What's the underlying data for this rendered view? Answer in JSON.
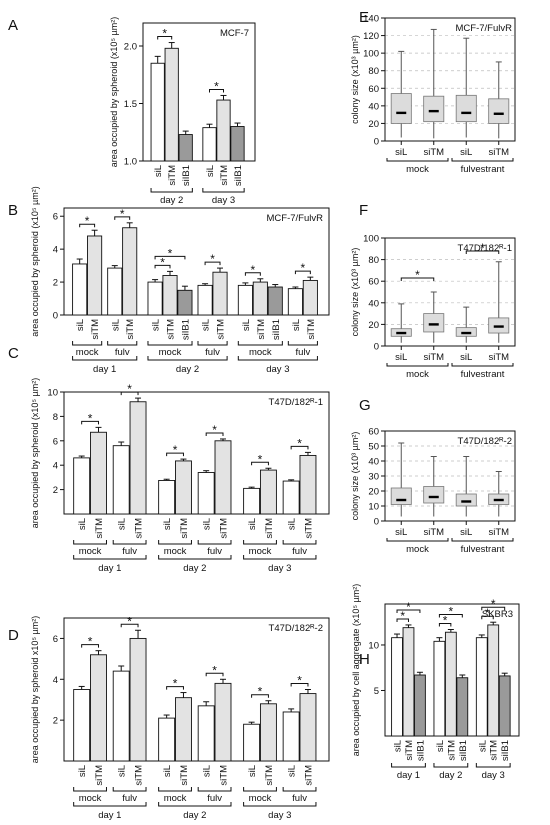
{
  "colors": {
    "white_bar": "#ffffff",
    "light_bar": "#e3e3e3",
    "dark_bar": "#9a9a9a",
    "box_fill": "#dcdcdc",
    "axis": "#111111",
    "grid": "#bdbdbd"
  },
  "chart_data": [
    {
      "panel": "A",
      "type": "bar",
      "title": "MCF-7",
      "ylabel": "area occupied by spheroid (x10⁵ µm²)",
      "ylim": [
        1.0,
        2.2
      ],
      "ticks": [
        1.0,
        1.5,
        2.0
      ],
      "tick_labels": [
        "1.0",
        "1.5",
        "2.0"
      ],
      "groups": [
        {
          "label": "day 2",
          "bars": [
            {
              "cat": "siL",
              "value": 1.85,
              "err": 0.06,
              "color": "white"
            },
            {
              "cat": "siTM",
              "value": 1.98,
              "err": 0.05,
              "color": "light"
            },
            {
              "cat": "siIB1",
              "value": 1.23,
              "err": 0.03,
              "color": "dark"
            }
          ]
        },
        {
          "label": "day 3",
          "bars": [
            {
              "cat": "siL",
              "value": 1.29,
              "err": 0.03,
              "color": "white"
            },
            {
              "cat": "siTM",
              "value": 1.53,
              "err": 0.04,
              "color": "light"
            },
            {
              "cat": "siIB1",
              "value": 1.3,
              "err": 0.03,
              "color": "dark"
            }
          ]
        }
      ],
      "stars": [
        {
          "g": 0,
          "a": 0,
          "b": 1
        },
        {
          "g": 1,
          "a": 0,
          "b": 1
        }
      ]
    },
    {
      "panel": "B",
      "type": "bar",
      "title": "MCF-7/FulvR",
      "ylabel": "area occupied by spheroid (x10⁵ µm²)",
      "ylim": [
        0,
        6.5
      ],
      "ticks": [
        0,
        2,
        4,
        6
      ],
      "tick_labels": [
        "0",
        "2",
        "4",
        "6"
      ],
      "groups": [
        {
          "label": "day 1",
          "subgroups": [
            {
              "label": "mock",
              "bars": [
                {
                  "cat": "siL",
                  "value": 3.1,
                  "err": 0.3,
                  "color": "white"
                },
                {
                  "cat": "siTM",
                  "value": 4.8,
                  "err": 0.35,
                  "color": "light"
                }
              ]
            },
            {
              "label": "fulv",
              "bars": [
                {
                  "cat": "siL",
                  "value": 2.85,
                  "err": 0.15,
                  "color": "white"
                },
                {
                  "cat": "siTM",
                  "value": 5.3,
                  "err": 0.3,
                  "color": "light"
                }
              ]
            }
          ]
        },
        {
          "label": "day 2",
          "subgroups": [
            {
              "label": "mock",
              "bars": [
                {
                  "cat": "siL",
                  "value": 2.0,
                  "err": 0.15,
                  "color": "white"
                },
                {
                  "cat": "siTM",
                  "value": 2.4,
                  "err": 0.25,
                  "color": "light"
                },
                {
                  "cat": "siIB1",
                  "value": 1.5,
                  "err": 0.25,
                  "color": "dark"
                }
              ]
            },
            {
              "label": "fulv",
              "bars": [
                {
                  "cat": "siL",
                  "value": 1.8,
                  "err": 0.1,
                  "color": "white"
                },
                {
                  "cat": "siTM",
                  "value": 2.6,
                  "err": 0.25,
                  "color": "light"
                }
              ]
            }
          ]
        },
        {
          "label": "day 3",
          "subgroups": [
            {
              "label": "mock",
              "bars": [
                {
                  "cat": "siL",
                  "value": 1.8,
                  "err": 0.15,
                  "color": "white"
                },
                {
                  "cat": "siTM",
                  "value": 2.0,
                  "err": 0.2,
                  "color": "light"
                },
                {
                  "cat": "siIB1",
                  "value": 1.7,
                  "err": 0.15,
                  "color": "dark"
                }
              ]
            },
            {
              "label": "fulv",
              "bars": [
                {
                  "cat": "siL",
                  "value": 1.6,
                  "err": 0.1,
                  "color": "white"
                },
                {
                  "cat": "siTM",
                  "value": 2.1,
                  "err": 0.2,
                  "color": "light"
                }
              ]
            }
          ]
        }
      ],
      "stars": [
        {
          "sg": [
            0,
            0
          ]
        },
        {
          "sg": [
            0,
            1
          ]
        },
        {
          "sg": [
            1,
            0
          ]
        },
        {
          "sg": [
            1,
            0
          ],
          "wide": true
        },
        {
          "sg": [
            1,
            1
          ]
        },
        {
          "sg": [
            2,
            0
          ]
        },
        {
          "sg": [
            2,
            1
          ]
        }
      ]
    },
    {
      "panel": "C",
      "type": "bar",
      "title": "T47D/182ᴿ-1",
      "ylabel": "area occupied by spheroid (x10⁵ µm²)",
      "ylim": [
        0,
        10
      ],
      "ticks": [
        2,
        4,
        6,
        8,
        10
      ],
      "tick_labels": [
        "2",
        "4",
        "6",
        "8",
        "10"
      ],
      "groups": [
        {
          "label": "day 1",
          "subgroups": [
            {
              "label": "mock",
              "bars": [
                {
                  "cat": "siL",
                  "value": 4.6,
                  "err": 0.15,
                  "color": "white"
                },
                {
                  "cat": "siTM",
                  "value": 6.7,
                  "err": 0.4,
                  "color": "light"
                }
              ]
            },
            {
              "label": "fulv",
              "bars": [
                {
                  "cat": "siL",
                  "value": 5.6,
                  "err": 0.3,
                  "color": "white"
                },
                {
                  "cat": "siTM",
                  "value": 9.2,
                  "err": 0.3,
                  "color": "light"
                }
              ]
            }
          ]
        },
        {
          "label": "day 2",
          "subgroups": [
            {
              "label": "mock",
              "bars": [
                {
                  "cat": "siL",
                  "value": 2.75,
                  "err": 0.1,
                  "color": "white"
                },
                {
                  "cat": "siTM",
                  "value": 4.35,
                  "err": 0.15,
                  "color": "light"
                }
              ]
            },
            {
              "label": "fulv",
              "bars": [
                {
                  "cat": "siL",
                  "value": 3.4,
                  "err": 0.15,
                  "color": "white"
                },
                {
                  "cat": "siTM",
                  "value": 6.0,
                  "err": 0.15,
                  "color": "light"
                }
              ]
            }
          ]
        },
        {
          "label": "day 3",
          "subgroups": [
            {
              "label": "mock",
              "bars": [
                {
                  "cat": "siL",
                  "value": 2.1,
                  "err": 0.1,
                  "color": "white"
                },
                {
                  "cat": "siTM",
                  "value": 3.6,
                  "err": 0.15,
                  "color": "light"
                }
              ]
            },
            {
              "label": "fulv",
              "bars": [
                {
                  "cat": "siL",
                  "value": 2.7,
                  "err": 0.1,
                  "color": "white"
                },
                {
                  "cat": "siTM",
                  "value": 4.8,
                  "err": 0.25,
                  "color": "light"
                }
              ]
            }
          ]
        }
      ],
      "stars": [
        {
          "sg": [
            0,
            0
          ]
        },
        {
          "sg": [
            0,
            1
          ]
        },
        {
          "sg": [
            1,
            0
          ]
        },
        {
          "sg": [
            1,
            1
          ]
        },
        {
          "sg": [
            2,
            0
          ]
        },
        {
          "sg": [
            2,
            1
          ]
        }
      ]
    },
    {
      "panel": "D",
      "type": "bar",
      "title": "T47D/182ᴿ-2",
      "ylabel": "area occupied by spheroid x10⁵ µm²)",
      "ylim": [
        0,
        7
      ],
      "ticks": [
        2,
        4,
        6
      ],
      "tick_labels": [
        "2",
        "4",
        "6"
      ],
      "groups": [
        {
          "label": "day 1",
          "subgroups": [
            {
              "label": "mock",
              "bars": [
                {
                  "cat": "siL",
                  "value": 3.5,
                  "err": 0.15,
                  "color": "white"
                },
                {
                  "cat": "siTM",
                  "value": 5.2,
                  "err": 0.2,
                  "color": "light"
                }
              ]
            },
            {
              "label": "fulv",
              "bars": [
                {
                  "cat": "siL",
                  "value": 4.4,
                  "err": 0.25,
                  "color": "white"
                },
                {
                  "cat": "siTM",
                  "value": 6.0,
                  "err": 0.4,
                  "color": "light"
                }
              ]
            }
          ]
        },
        {
          "label": "day 2",
          "subgroups": [
            {
              "label": "mock",
              "bars": [
                {
                  "cat": "siL",
                  "value": 2.1,
                  "err": 0.15,
                  "color": "white"
                },
                {
                  "cat": "siTM",
                  "value": 3.1,
                  "err": 0.25,
                  "color": "light"
                }
              ]
            },
            {
              "label": "fulv",
              "bars": [
                {
                  "cat": "siL",
                  "value": 2.7,
                  "err": 0.2,
                  "color": "white"
                },
                {
                  "cat": "siTM",
                  "value": 3.8,
                  "err": 0.2,
                  "color": "light"
                }
              ]
            }
          ]
        },
        {
          "label": "day 3",
          "subgroups": [
            {
              "label": "mock",
              "bars": [
                {
                  "cat": "siL",
                  "value": 1.8,
                  "err": 0.1,
                  "color": "white"
                },
                {
                  "cat": "siTM",
                  "value": 2.8,
                  "err": 0.15,
                  "color": "light"
                }
              ]
            },
            {
              "label": "fulv",
              "bars": [
                {
                  "cat": "siL",
                  "value": 2.4,
                  "err": 0.15,
                  "color": "white"
                },
                {
                  "cat": "siTM",
                  "value": 3.3,
                  "err": 0.2,
                  "color": "light"
                }
              ]
            }
          ]
        }
      ],
      "stars": [
        {
          "sg": [
            0,
            0
          ]
        },
        {
          "sg": [
            0,
            1
          ]
        },
        {
          "sg": [
            1,
            0
          ]
        },
        {
          "sg": [
            1,
            1
          ]
        },
        {
          "sg": [
            2,
            0
          ]
        },
        {
          "sg": [
            2,
            1
          ]
        }
      ]
    },
    {
      "panel": "E",
      "type": "box",
      "title": "MCF-7/FulvR",
      "ylabel": "colony size (x10³ µm²)",
      "ylim": [
        0,
        140
      ],
      "ticks": [
        0,
        20,
        40,
        60,
        80,
        100,
        120,
        140
      ],
      "tick_labels": [
        "0",
        "20",
        "40",
        "60",
        "80",
        "100",
        "120",
        "140"
      ],
      "groups": [
        {
          "label": "mock",
          "boxes": [
            {
              "cat": "siL",
              "min": 4,
              "q1": 20,
              "median": 32,
              "q3": 54,
              "max": 102
            },
            {
              "cat": "siTM",
              "min": 3,
              "q1": 22,
              "median": 34,
              "q3": 51,
              "max": 127
            }
          ]
        },
        {
          "label": "fulvestrant",
          "boxes": [
            {
              "cat": "siL",
              "min": 4,
              "q1": 22,
              "median": 32,
              "q3": 52,
              "max": 117
            },
            {
              "cat": "siTM",
              "min": 3,
              "q1": 20,
              "median": 31,
              "q3": 48,
              "max": 90
            }
          ]
        }
      ],
      "stars": []
    },
    {
      "panel": "F",
      "type": "box",
      "title": "T47D/182ᴿ-1",
      "ylabel": "colony size (x10³ µm²)",
      "ylim": [
        0,
        100
      ],
      "ticks": [
        0,
        20,
        40,
        60,
        80,
        100
      ],
      "tick_labels": [
        "0",
        "20",
        "40",
        "60",
        "80",
        "100"
      ],
      "groups": [
        {
          "label": "mock",
          "boxes": [
            {
              "cat": "siL",
              "min": 3,
              "q1": 9,
              "median": 12,
              "q3": 16,
              "max": 39
            },
            {
              "cat": "siTM",
              "min": 3,
              "q1": 13,
              "median": 20,
              "q3": 30,
              "max": 50
            }
          ]
        },
        {
          "label": "fulvestrant",
          "boxes": [
            {
              "cat": "siL",
              "min": 3,
              "q1": 9,
              "median": 12,
              "q3": 17,
              "max": 36
            },
            {
              "cat": "siTM",
              "min": 3,
              "q1": 12,
              "median": 18,
              "q3": 26,
              "max": 78
            }
          ]
        }
      ],
      "stars": [
        {
          "g": 0,
          "y": 63
        },
        {
          "g": 1,
          "y": 88
        }
      ]
    },
    {
      "panel": "G",
      "type": "box",
      "title": "T47D/182ᴿ-2",
      "ylabel": "colony size (x10³ µm²)",
      "ylim": [
        0,
        60
      ],
      "ticks": [
        0,
        10,
        20,
        30,
        40,
        50,
        60
      ],
      "tick_labels": [
        "0",
        "10",
        "20",
        "30",
        "40",
        "50",
        "60"
      ],
      "groups": [
        {
          "label": "mock",
          "boxes": [
            {
              "cat": "siL",
              "min": 3,
              "q1": 11,
              "median": 14,
              "q3": 22,
              "max": 52
            },
            {
              "cat": "siTM",
              "min": 3,
              "q1": 12,
              "median": 16,
              "q3": 23,
              "max": 43
            }
          ]
        },
        {
          "label": "fulvestrant",
          "boxes": [
            {
              "cat": "siL",
              "min": 3,
              "q1": 10,
              "median": 13,
              "q3": 18,
              "max": 43
            },
            {
              "cat": "siTM",
              "min": 3,
              "q1": 11,
              "median": 14,
              "q3": 18,
              "max": 33
            }
          ]
        }
      ],
      "stars": []
    },
    {
      "panel": "H",
      "type": "bar",
      "title": "SKBR3",
      "ylabel": "area occupied by cell aggregate (x10⁵ µm²)",
      "ylim": [
        0,
        14.5
      ],
      "ticks": [
        5,
        10
      ],
      "tick_labels": [
        "5",
        "10"
      ],
      "groups": [
        {
          "label": "day 1",
          "bars": [
            {
              "cat": "siL",
              "value": 10.8,
              "err": 0.4,
              "color": "white"
            },
            {
              "cat": "siTM",
              "value": 11.9,
              "err": 0.3,
              "color": "light"
            },
            {
              "cat": "siIB1",
              "value": 6.7,
              "err": 0.3,
              "color": "dark"
            }
          ]
        },
        {
          "label": "day 2",
          "bars": [
            {
              "cat": "siL",
              "value": 10.4,
              "err": 0.4,
              "color": "white"
            },
            {
              "cat": "siTM",
              "value": 11.4,
              "err": 0.3,
              "color": "light"
            },
            {
              "cat": "siIB1",
              "value": 6.4,
              "err": 0.3,
              "color": "dark"
            }
          ]
        },
        {
          "label": "day 3",
          "bars": [
            {
              "cat": "siL",
              "value": 10.8,
              "err": 0.3,
              "color": "white"
            },
            {
              "cat": "siTM",
              "value": 12.2,
              "err": 0.3,
              "color": "light"
            },
            {
              "cat": "siIB1",
              "value": 6.6,
              "err": 0.3,
              "color": "dark"
            }
          ]
        }
      ],
      "stars": [
        {
          "g": 0,
          "a": 0,
          "b": 1
        },
        {
          "g": 0,
          "a": 0,
          "b": 2
        },
        {
          "g": 1,
          "a": 0,
          "b": 1
        },
        {
          "g": 1,
          "a": 0,
          "b": 2
        },
        {
          "g": 2,
          "a": 0,
          "b": 1
        },
        {
          "g": 2,
          "a": 0,
          "b": 2
        }
      ]
    }
  ]
}
